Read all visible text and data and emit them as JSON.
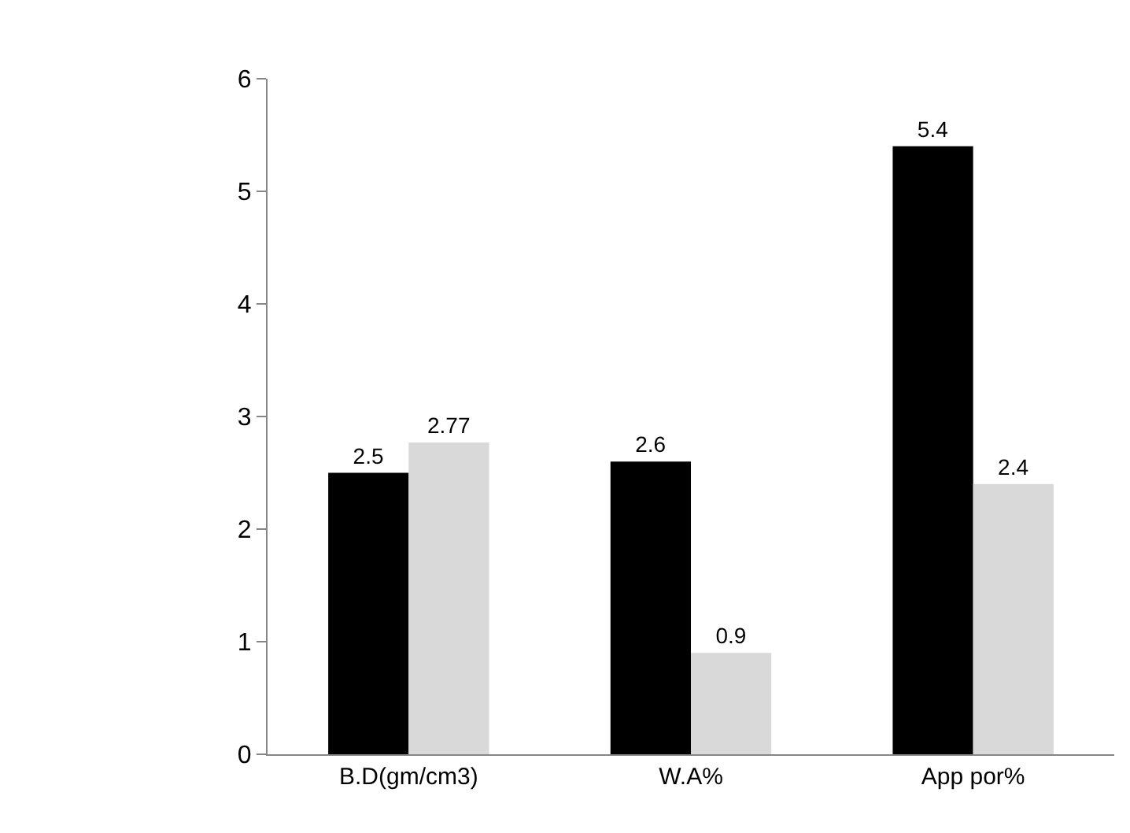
{
  "chart_data": {
    "type": "bar",
    "categories": [
      "B.D(gm/cm3)",
      "W.A%",
      "App por%"
    ],
    "series": [
      {
        "color": "#000000",
        "values": [
          2.5,
          2.6,
          5.4
        ]
      },
      {
        "color": "#d9d9d9",
        "values": [
          2.77,
          0.9,
          2.4
        ]
      }
    ],
    "ylim": [
      0,
      6
    ],
    "yticks": [
      0,
      1,
      2,
      3,
      4,
      5,
      6
    ],
    "data_labels": true
  }
}
